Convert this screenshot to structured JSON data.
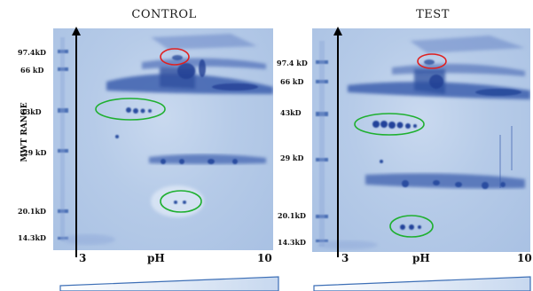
{
  "panels": [
    {
      "title": "CONTROL",
      "mw_labels": [
        "97.4kD",
        "66 kD",
        "43kD",
        "29 kD",
        "20.1kD",
        "14.3kD"
      ],
      "ph_start": "3",
      "ph_label": "pH",
      "ph_end": "10"
    },
    {
      "title": "TEST",
      "mw_labels": [
        "97.4 kD",
        "66 kD",
        "43kD",
        "29 kD",
        "20.1kD",
        "14.3kD"
      ],
      "ph_start": "3",
      "ph_label": "pH",
      "ph_end": "10"
    }
  ],
  "y_axis_label": "MWT RANGE",
  "colors": {
    "gel_base": "#b6cbe8",
    "protein_spot": "#2b4ea0",
    "highlight_red": "#e02020",
    "highlight_green": "#1fb030",
    "gradient_bar": "#3d6fb6"
  }
}
